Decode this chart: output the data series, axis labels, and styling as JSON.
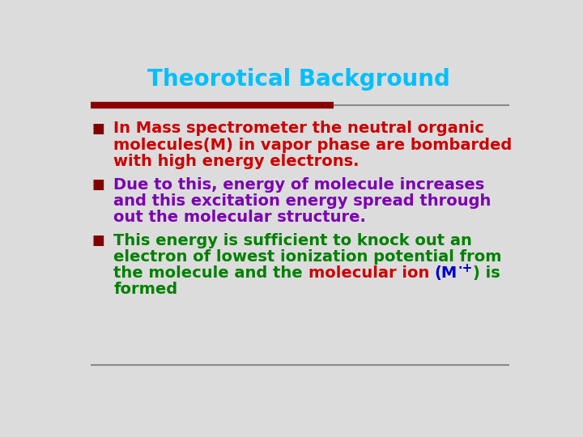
{
  "title": "Theorotical Background",
  "title_color": "#00BFFF",
  "background_color": "#DCDCDC",
  "line_color_thick": "#8B0000",
  "line_color_thin": "#888888",
  "bullet1_text_lines": [
    "In Mass spectrometer the neutral organic",
    "molecules(M) in vapor phase are bombarded",
    "with high energy electrons."
  ],
  "bullet1_color": "#CC0000",
  "bullet2_text_lines": [
    "Due to this, energy of molecule increases",
    "and this excitation energy spread through",
    "out the molecular structure."
  ],
  "bullet2_color": "#7B00B0",
  "bullet3_line1": "This energy is sufficient to knock out an",
  "bullet3_line2": "electron of lowest ionization potential from",
  "bullet3_line3_green": "the molecule and the ",
  "bullet3_line3_red": "molecular ion ",
  "bullet3_line3_blue": "(M",
  "bullet3_line3_blue2": "·+",
  "bullet3_line3_green2": ") is",
  "bullet3_line4": "formed",
  "bullet3_color": "#008000",
  "bullet3_red": "#CC0000",
  "bullet3_blue": "#0000CC",
  "bullet_sq_color": "#800000",
  "font_family": "Comic Sans MS",
  "title_fontsize": 20,
  "body_fontsize": 14
}
